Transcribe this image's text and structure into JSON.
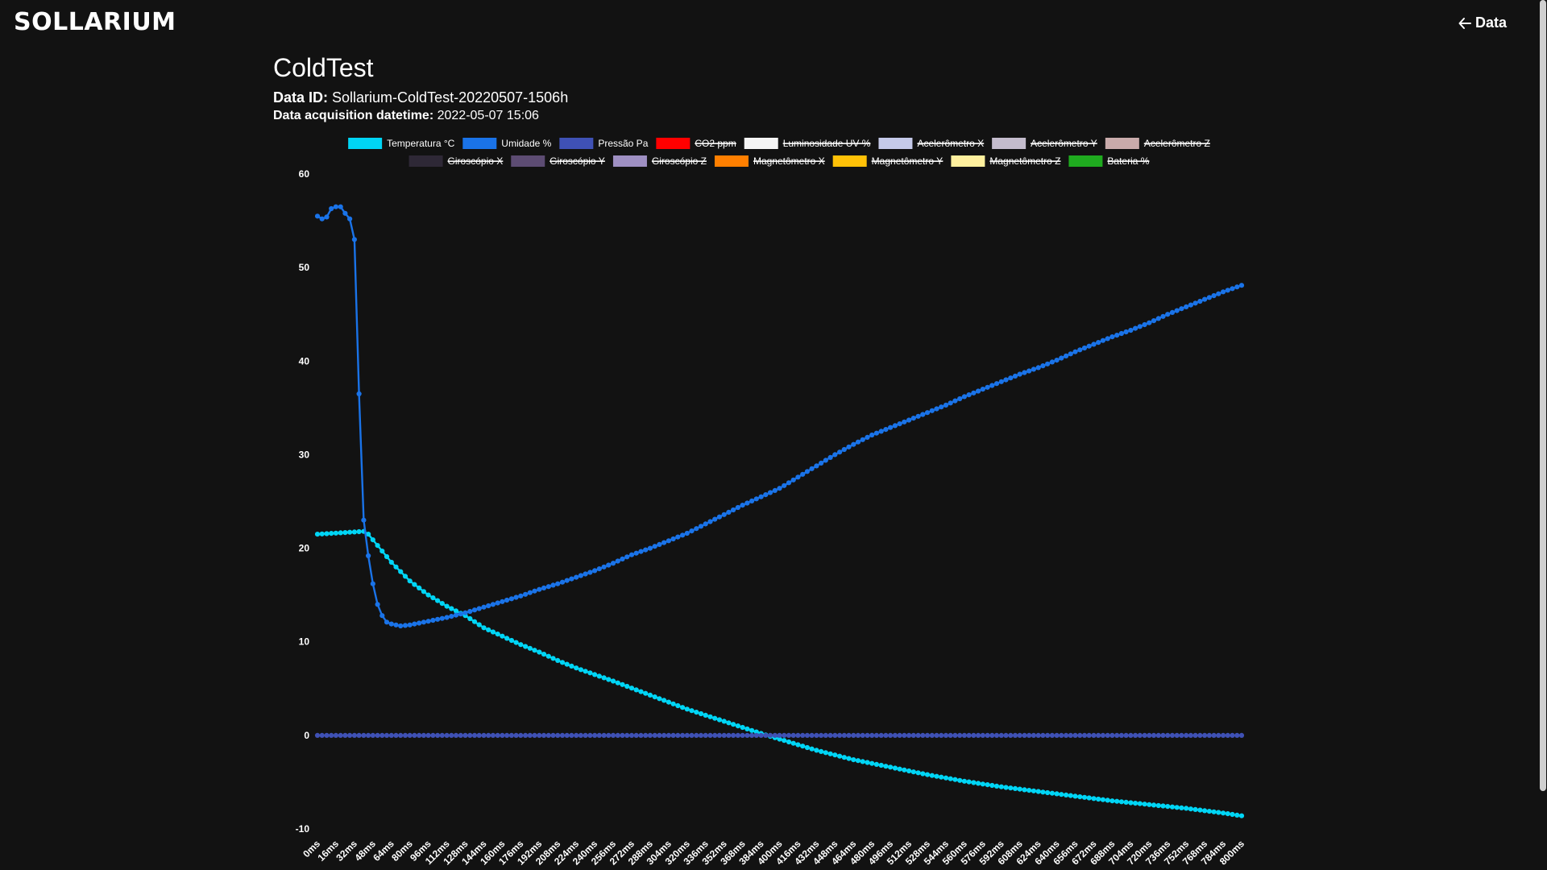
{
  "brand": {
    "name": "SOLLARIUM"
  },
  "nav": {
    "back_label": "Data"
  },
  "page": {
    "title": "ColdTest",
    "data_id_label": "Data ID:",
    "data_id": "Sollarium-ColdTest-20220507-1506h",
    "datetime_label": "Data acquisition datetime:",
    "datetime": "2022-05-07 15:06"
  },
  "chart_data": {
    "type": "line",
    "xlabel": "",
    "ylabel": "",
    "ylim": [
      -10,
      60
    ],
    "yticks": [
      -10,
      0,
      10,
      20,
      30,
      40,
      50,
      60
    ],
    "grid": false,
    "legend_position": "top",
    "x_unit": "ms",
    "x_start": 0,
    "x_step": 4,
    "x_count": 201,
    "x_tick_every": 16,
    "legend": [
      {
        "name": "Temperatura °C",
        "color": "#00d5f5",
        "hidden": false
      },
      {
        "name": "Umidade %",
        "color": "#1a73e8",
        "hidden": false
      },
      {
        "name": "Pressão Pa",
        "color": "#3f51b5",
        "hidden": false
      },
      {
        "name": "CO2 ppm",
        "color": "#ff0000",
        "hidden": true
      },
      {
        "name": "Luminosidade UV %",
        "color": "#f5f5f5",
        "hidden": true
      },
      {
        "name": "Acelerômetro X",
        "color": "#c5cae9",
        "hidden": true
      },
      {
        "name": "Acelerômetro Y",
        "color": "#c4bccd",
        "hidden": true
      },
      {
        "name": "Acelerômetro Z",
        "color": "#c9abab",
        "hidden": true
      },
      {
        "name": "Giroscópio X",
        "color": "#2e2836",
        "hidden": true
      },
      {
        "name": "Giroscópio Y",
        "color": "#5d4c73",
        "hidden": true
      },
      {
        "name": "Giroscópio Z",
        "color": "#9e8fc2",
        "hidden": true
      },
      {
        "name": "Magnetômetro X",
        "color": "#ff7f00",
        "hidden": true
      },
      {
        "name": "Magnetômetro Y",
        "color": "#ffc107",
        "hidden": true
      },
      {
        "name": "Magnetômetro Z",
        "color": "#fff09e",
        "hidden": true
      },
      {
        "name": "Bateria %",
        "color": "#1faa1f",
        "hidden": true
      }
    ],
    "series": [
      {
        "name": "Temperatura °C",
        "color": "#00d5f5",
        "shape": "exponential-decay",
        "keypoints": [
          [
            0,
            21.5
          ],
          [
            40,
            21.8
          ],
          [
            44,
            21.5
          ],
          [
            48,
            20.9
          ],
          [
            64,
            18.5
          ],
          [
            80,
            16.5
          ],
          [
            96,
            15.0
          ],
          [
            112,
            13.8
          ],
          [
            128,
            12.8
          ],
          [
            144,
            11.5
          ],
          [
            160,
            10.6
          ],
          [
            176,
            9.7
          ],
          [
            192,
            8.9
          ],
          [
            208,
            8.0
          ],
          [
            224,
            7.2
          ],
          [
            256,
            5.8
          ],
          [
            288,
            4.3
          ],
          [
            320,
            2.8
          ],
          [
            352,
            1.5
          ],
          [
            384,
            0.2
          ],
          [
            400,
            -0.4
          ],
          [
            432,
            -1.6
          ],
          [
            464,
            -2.6
          ],
          [
            496,
            -3.4
          ],
          [
            528,
            -4.2
          ],
          [
            560,
            -4.9
          ],
          [
            592,
            -5.5
          ],
          [
            624,
            -6.0
          ],
          [
            656,
            -6.5
          ],
          [
            688,
            -7.0
          ],
          [
            720,
            -7.4
          ],
          [
            752,
            -7.8
          ],
          [
            784,
            -8.3
          ],
          [
            800,
            -8.6
          ]
        ]
      },
      {
        "name": "Umidade %",
        "color": "#1a73e8",
        "shape": "drop-then-rise",
        "keypoints": [
          [
            0,
            55.5
          ],
          [
            4,
            55.2
          ],
          [
            8,
            55.4
          ],
          [
            12,
            56.3
          ],
          [
            16,
            56.5
          ],
          [
            20,
            56.5
          ],
          [
            24,
            55.8
          ],
          [
            28,
            55.2
          ],
          [
            32,
            53.0
          ],
          [
            36,
            36.5
          ],
          [
            40,
            23.0
          ],
          [
            44,
            19.2
          ],
          [
            48,
            16.2
          ],
          [
            52,
            14.0
          ],
          [
            56,
            12.8
          ],
          [
            60,
            12.1
          ],
          [
            64,
            11.9
          ],
          [
            72,
            11.7
          ],
          [
            80,
            11.8
          ],
          [
            96,
            12.2
          ],
          [
            112,
            12.6
          ],
          [
            128,
            13.1
          ],
          [
            144,
            13.7
          ],
          [
            160,
            14.3
          ],
          [
            176,
            14.9
          ],
          [
            192,
            15.6
          ],
          [
            208,
            16.2
          ],
          [
            224,
            16.9
          ],
          [
            240,
            17.6
          ],
          [
            256,
            18.4
          ],
          [
            272,
            19.3
          ],
          [
            288,
            20.0
          ],
          [
            304,
            20.8
          ],
          [
            320,
            21.6
          ],
          [
            336,
            22.6
          ],
          [
            352,
            23.6
          ],
          [
            368,
            24.6
          ],
          [
            384,
            25.5
          ],
          [
            400,
            26.4
          ],
          [
            416,
            27.6
          ],
          [
            432,
            28.8
          ],
          [
            448,
            30.0
          ],
          [
            464,
            31.1
          ],
          [
            480,
            32.1
          ],
          [
            496,
            32.9
          ],
          [
            512,
            33.7
          ],
          [
            528,
            34.5
          ],
          [
            544,
            35.3
          ],
          [
            560,
            36.2
          ],
          [
            576,
            37.0
          ],
          [
            592,
            37.8
          ],
          [
            608,
            38.6
          ],
          [
            624,
            39.3
          ],
          [
            640,
            40.1
          ],
          [
            656,
            41.0
          ],
          [
            672,
            41.8
          ],
          [
            688,
            42.6
          ],
          [
            704,
            43.3
          ],
          [
            720,
            44.1
          ],
          [
            736,
            45.0
          ],
          [
            752,
            45.8
          ],
          [
            768,
            46.6
          ],
          [
            784,
            47.4
          ],
          [
            800,
            48.1
          ]
        ]
      },
      {
        "name": "Pressão Pa",
        "color": "#3f51b5",
        "shape": "flat",
        "keypoints": [
          [
            0,
            0
          ],
          [
            800,
            0
          ]
        ]
      }
    ]
  }
}
